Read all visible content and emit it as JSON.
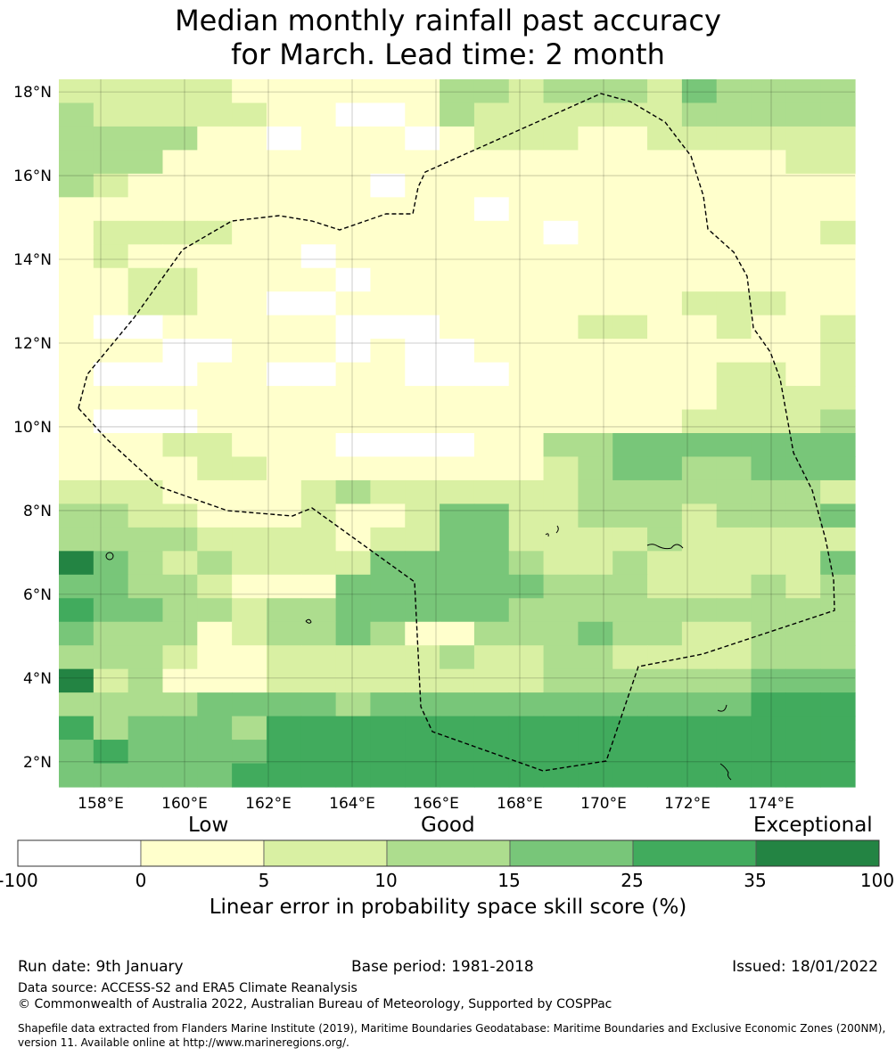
{
  "title_line1": "Median monthly rainfall past accuracy",
  "title_line2": "for March. Lead time: 2 month",
  "map": {
    "lon_range": [
      157,
      176
    ],
    "lat_range": [
      1.4,
      18.3
    ],
    "lon_ticks": [
      "158°E",
      "160°E",
      "162°E",
      "164°E",
      "166°E",
      "168°E",
      "170°E",
      "172°E",
      "174°E"
    ],
    "lat_ticks": [
      "18°N",
      "16°N",
      "14°N",
      "12°N",
      "10°N",
      "8°N",
      "6°N",
      "4°N",
      "2°N"
    ],
    "grid": true,
    "region_outline": "dashed EEZ boundary"
  },
  "colorbar": {
    "category_labels": [
      "Low",
      "Good",
      "Exceptional"
    ],
    "ticks": [
      "-100",
      "0",
      "5",
      "10",
      "15",
      "25",
      "35",
      "100"
    ],
    "colors": [
      "#ffffff",
      "#ffffcc",
      "#d9f0a3",
      "#addd8e",
      "#78c679",
      "#41ab5d",
      "#238443"
    ],
    "title": "Linear error in probability space skill score (%)"
  },
  "footer": {
    "run_date": "Run date: 9th January",
    "base_period": "Base period: 1981-2018",
    "issued": "Issued: 18/01/2022",
    "data_source": "Data source: ACCESS-S2 and ERA5 Climate Reanalysis",
    "copyright": "© Commonwealth of Australia 2022, Australian Bureau of Meteorology, Supported by COSPPac",
    "shapefile_line1": "Shapefile data extracted from Flanders Marine Institute (2019), Maritime Boundaries Geodatabase: Maritime Boundaries and Exclusive Economic Zones (200NM),",
    "shapefile_line2": "version 11. Available online at http://www.marineregions.org/."
  }
}
